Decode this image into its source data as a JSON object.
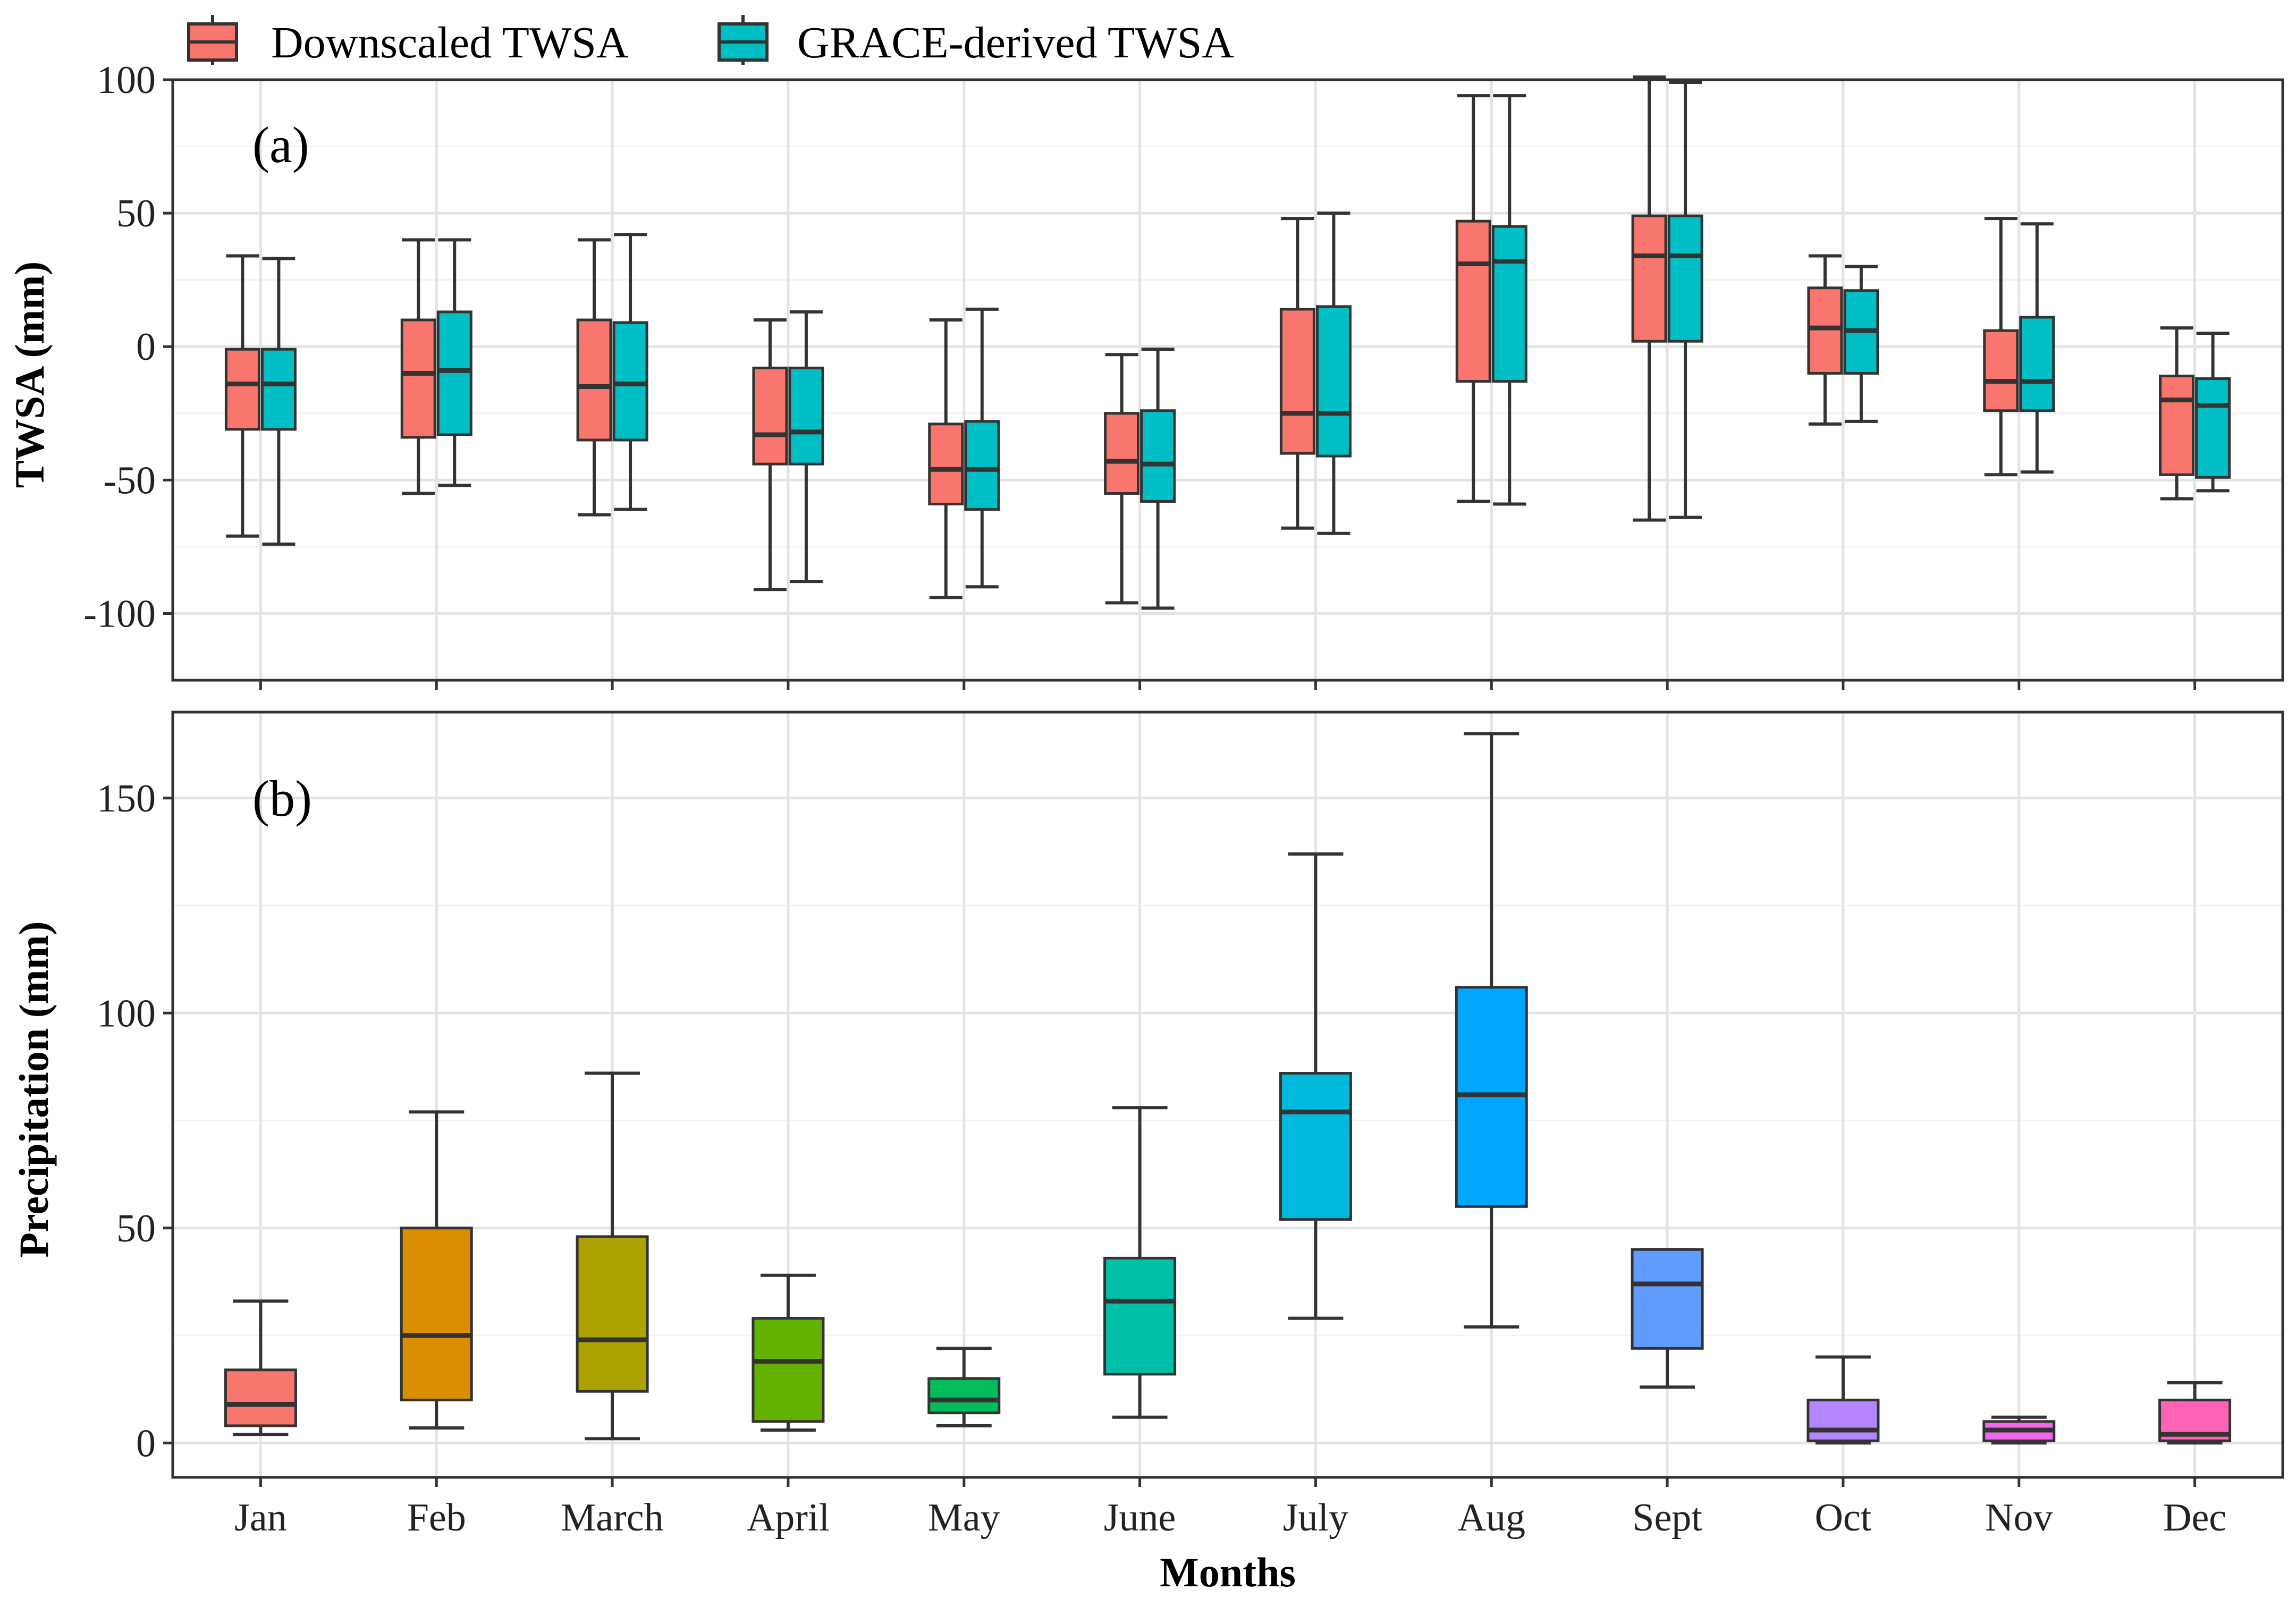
{
  "legend": {
    "items": [
      {
        "label": "Downscaled TWSA",
        "color": "#F8766D"
      },
      {
        "label": "GRACE-derived TWSA",
        "color": "#00BFC4"
      }
    ]
  },
  "panel_a": {
    "tag": "(a)"
  },
  "panel_b": {
    "tag": "(b)"
  },
  "chart_data": [
    {
      "type": "box",
      "panel": "(a)",
      "ylabel": "TWSA (mm)",
      "xlabel": "",
      "ylim": [
        -125,
        100
      ],
      "yticks": [
        100,
        50,
        0,
        -50,
        -100
      ],
      "grid": true,
      "legend_placement": "top",
      "categories": [
        "Jan",
        "Feb",
        "March",
        "April",
        "May",
        "June",
        "July",
        "Aug",
        "Sept",
        "Oct",
        "Nov",
        "Dec"
      ],
      "series": [
        {
          "name": "Downscaled TWSA",
          "color": "#F8766D",
          "boxes": [
            {
              "min": -71,
              "q1": -31,
              "median": -14,
              "q3": -1,
              "max": 34
            },
            {
              "min": -55,
              "q1": -34,
              "median": -10,
              "q3": 10,
              "max": 40
            },
            {
              "min": -63,
              "q1": -35,
              "median": -15,
              "q3": 10,
              "max": 40
            },
            {
              "min": -91,
              "q1": -44,
              "median": -33,
              "q3": -8,
              "max": 10
            },
            {
              "min": -94,
              "q1": -59,
              "median": -46,
              "q3": -29,
              "max": 10
            },
            {
              "min": -96,
              "q1": -55,
              "median": -43,
              "q3": -25,
              "max": -3
            },
            {
              "min": -68,
              "q1": -40,
              "median": -25,
              "q3": 14,
              "max": 48
            },
            {
              "min": -58,
              "q1": -13,
              "median": 31,
              "q3": 47,
              "max": 94
            },
            {
              "min": -65,
              "q1": 2,
              "median": 34,
              "q3": 49,
              "max": 101
            },
            {
              "min": -29,
              "q1": -10,
              "median": 7,
              "q3": 22,
              "max": 34
            },
            {
              "min": -48,
              "q1": -24,
              "median": -13,
              "q3": 6,
              "max": 48
            },
            {
              "min": -57,
              "q1": -48,
              "median": -20,
              "q3": -11,
              "max": 7
            }
          ]
        },
        {
          "name": "GRACE-derived TWSA",
          "color": "#00BFC4",
          "boxes": [
            {
              "min": -74,
              "q1": -31,
              "median": -14,
              "q3": -1,
              "max": 33
            },
            {
              "min": -52,
              "q1": -33,
              "median": -9,
              "q3": 13,
              "max": 40
            },
            {
              "min": -61,
              "q1": -35,
              "median": -14,
              "q3": 9,
              "max": 42
            },
            {
              "min": -88,
              "q1": -44,
              "median": -32,
              "q3": -8,
              "max": 13
            },
            {
              "min": -90,
              "q1": -61,
              "median": -46,
              "q3": -28,
              "max": 14
            },
            {
              "min": -98,
              "q1": -58,
              "median": -44,
              "q3": -24,
              "max": -1
            },
            {
              "min": -70,
              "q1": -41,
              "median": -25,
              "q3": 15,
              "max": 50
            },
            {
              "min": -59,
              "q1": -13,
              "median": 32,
              "q3": 45,
              "max": 94
            },
            {
              "min": -64,
              "q1": 2,
              "median": 34,
              "q3": 49,
              "max": 99
            },
            {
              "min": -28,
              "q1": -10,
              "median": 6,
              "q3": 21,
              "max": 30
            },
            {
              "min": -47,
              "q1": -24,
              "median": -13,
              "q3": 11,
              "max": 46
            },
            {
              "min": -54,
              "q1": -49,
              "median": -22,
              "q3": -12,
              "max": 5
            }
          ]
        }
      ]
    },
    {
      "type": "box",
      "panel": "(b)",
      "ylabel": "Precipitation (mm)",
      "xlabel": "Months",
      "ylim": [
        -8,
        170
      ],
      "yticks": [
        150,
        100,
        50,
        0
      ],
      "grid": true,
      "categories": [
        "Jan",
        "Feb",
        "March",
        "April",
        "May",
        "June",
        "July",
        "Aug",
        "Sept",
        "Oct",
        "Nov",
        "Dec"
      ],
      "series": [
        {
          "colors": [
            "#F8766D",
            "#DB8E00",
            "#AEA200",
            "#64B200",
            "#00BD5C",
            "#00C1A7",
            "#00BADE",
            "#00A6FF",
            "#619CFF",
            "#B385FF",
            "#EF67EB",
            "#FF63B6"
          ],
          "boxes": [
            {
              "min": 2,
              "q1": 4,
              "median": 9,
              "q3": 17,
              "max": 33
            },
            {
              "min": 3.5,
              "q1": 10,
              "median": 25,
              "q3": 50,
              "max": 77
            },
            {
              "min": 1,
              "q1": 12,
              "median": 24,
              "q3": 48,
              "max": 86
            },
            {
              "min": 3,
              "q1": 5,
              "median": 19,
              "q3": 29,
              "max": 39
            },
            {
              "min": 4,
              "q1": 7,
              "median": 10,
              "q3": 15,
              "max": 22
            },
            {
              "min": 6,
              "q1": 16,
              "median": 33,
              "q3": 43,
              "max": 78
            },
            {
              "min": 29,
              "q1": 52,
              "median": 77,
              "q3": 86,
              "max": 137
            },
            {
              "min": 27,
              "q1": 55,
              "median": 81,
              "q3": 106,
              "max": 165
            },
            {
              "min": 13,
              "q1": 22,
              "median": 37,
              "q3": 45,
              "max": 45
            },
            {
              "min": 0,
              "q1": 0.5,
              "median": 3,
              "q3": 10,
              "max": 20
            },
            {
              "min": 0,
              "q1": 0.5,
              "median": 3,
              "q3": 5,
              "max": 6
            },
            {
              "min": 0,
              "q1": 0.5,
              "median": 2,
              "q3": 10,
              "max": 14
            }
          ]
        }
      ]
    }
  ]
}
